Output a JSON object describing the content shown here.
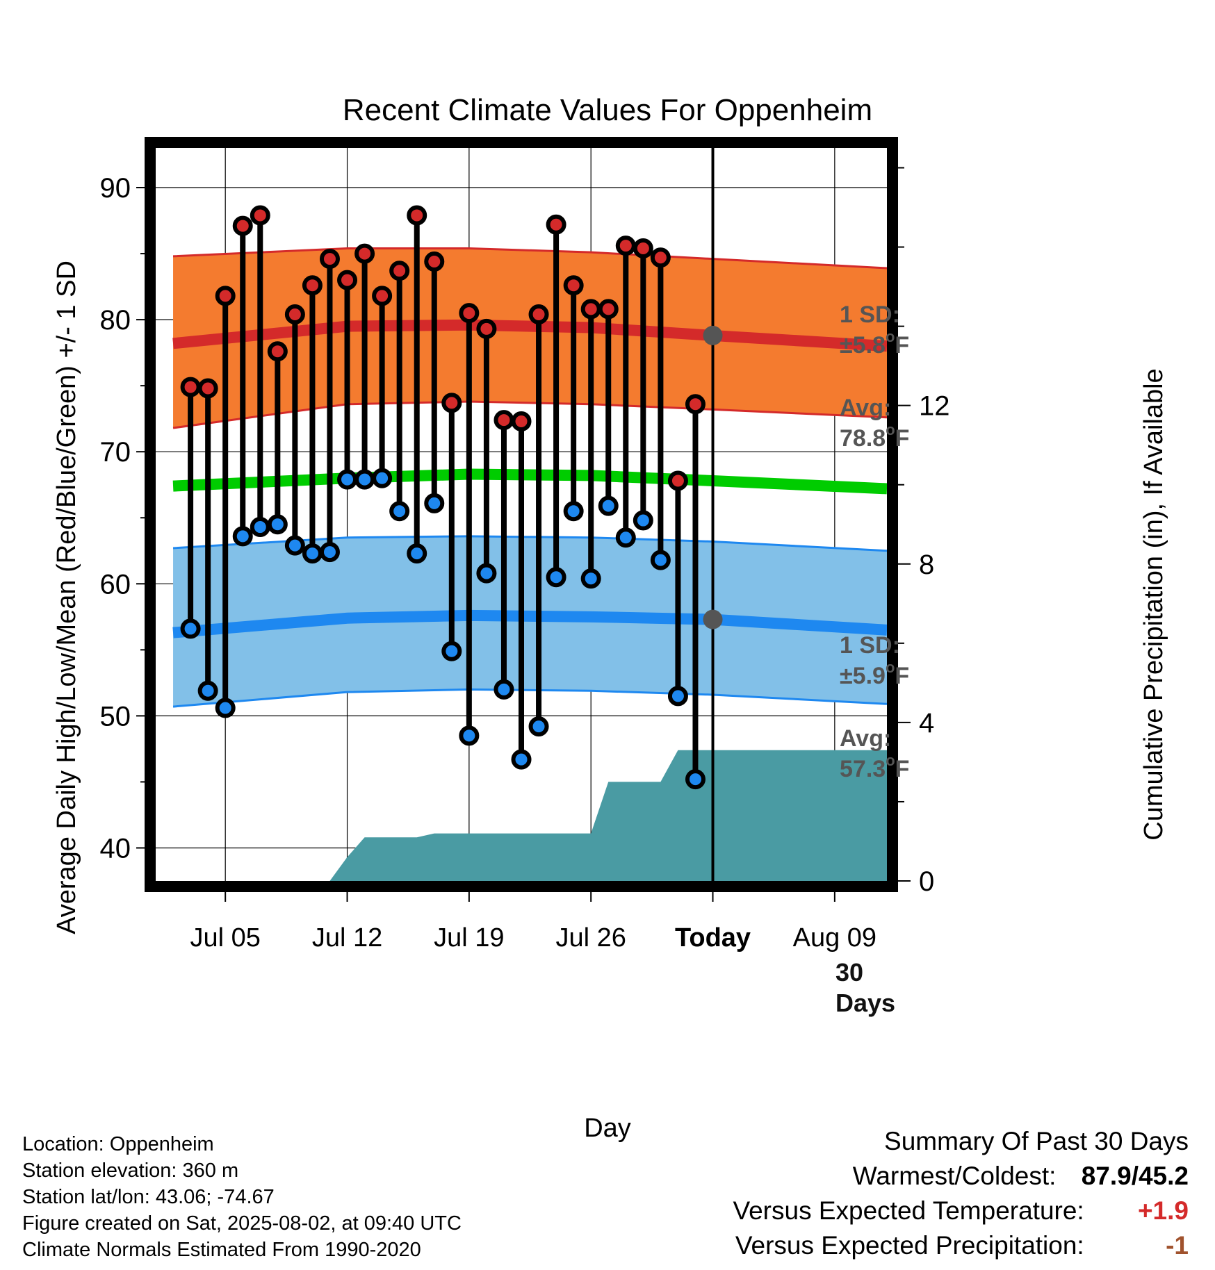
{
  "chart_data": {
    "type": "line",
    "title": "Recent Climate Values For Oppenheim",
    "xlabel": "Day",
    "ylabel": "Average Daily High/Low/Mean (Red/Blue/Green) +/- 1 SD",
    "y2label": "Cumulative Precipitation (in), If Available",
    "ylim": [
      37.5,
      93
    ],
    "y2lim": [
      0,
      18.5
    ],
    "xlim": [
      "2025-07-01",
      "2025-08-12"
    ],
    "x_ticks": [
      {
        "date": "2025-07-05",
        "label": "Jul 05"
      },
      {
        "date": "2025-07-12",
        "label": "Jul 12"
      },
      {
        "date": "2025-07-19",
        "label": "Jul 19"
      },
      {
        "date": "2025-07-26",
        "label": "Jul 26"
      },
      {
        "date": "2025-08-02",
        "label": "Today"
      },
      {
        "date": "2025-08-09",
        "label": "Aug 09"
      }
    ],
    "y_ticks": [
      40,
      50,
      60,
      70,
      80,
      90
    ],
    "y2_ticks": [
      0,
      4,
      8,
      12
    ],
    "grid": true,
    "colors": {
      "high": "#d42a2a",
      "high_band": "#f47b2f",
      "low": "#1e88f0",
      "low_band": "#82c0e8",
      "mean": "#00cc00",
      "precip": "#4a9ba3",
      "annotation": "#555555"
    },
    "normals": {
      "dates": [
        "2025-07-02",
        "2025-07-12",
        "2025-07-19",
        "2025-07-26",
        "2025-08-02",
        "2025-08-12"
      ],
      "high_avg": [
        78.2,
        79.5,
        79.6,
        79.4,
        78.8,
        78.0
      ],
      "high_upper": [
        84.8,
        85.4,
        85.4,
        85.1,
        84.6,
        83.9
      ],
      "high_lower": [
        71.8,
        73.6,
        73.8,
        73.6,
        73.2,
        72.6
      ],
      "low_avg": [
        56.3,
        57.4,
        57.6,
        57.5,
        57.3,
        56.5
      ],
      "low_upper": [
        62.7,
        63.5,
        63.6,
        63.5,
        63.2,
        62.5
      ],
      "low_lower": [
        50.7,
        51.8,
        52.0,
        51.9,
        51.6,
        50.9
      ],
      "mean_avg": [
        67.4,
        68.0,
        68.3,
        68.2,
        67.8,
        67.2
      ]
    },
    "series": [
      {
        "name": "High",
        "x": [
          "2025-07-03",
          "2025-07-04",
          "2025-07-05",
          "2025-07-06",
          "2025-07-07",
          "2025-07-08",
          "2025-07-09",
          "2025-07-10",
          "2025-07-11",
          "2025-07-12",
          "2025-07-13",
          "2025-07-14",
          "2025-07-15",
          "2025-07-16",
          "2025-07-17",
          "2025-07-18",
          "2025-07-19",
          "2025-07-20",
          "2025-07-21",
          "2025-07-22",
          "2025-07-23",
          "2025-07-24",
          "2025-07-25",
          "2025-07-26",
          "2025-07-27",
          "2025-07-28",
          "2025-07-29",
          "2025-07-30",
          "2025-07-31",
          "2025-08-01"
        ],
        "values": [
          74.9,
          74.8,
          81.8,
          87.1,
          87.9,
          77.6,
          80.4,
          82.6,
          84.6,
          83.0,
          85.0,
          81.8,
          83.7,
          87.9,
          84.4,
          73.7,
          80.5,
          79.3,
          72.4,
          72.3,
          80.4,
          87.2,
          82.6,
          80.8,
          80.8,
          85.6,
          85.4,
          84.7,
          67.8,
          73.6
        ]
      },
      {
        "name": "Low",
        "x": [
          "2025-07-03",
          "2025-07-04",
          "2025-07-05",
          "2025-07-06",
          "2025-07-07",
          "2025-07-08",
          "2025-07-09",
          "2025-07-10",
          "2025-07-11",
          "2025-07-12",
          "2025-07-13",
          "2025-07-14",
          "2025-07-15",
          "2025-07-16",
          "2025-07-17",
          "2025-07-18",
          "2025-07-19",
          "2025-07-20",
          "2025-07-21",
          "2025-07-22",
          "2025-07-23",
          "2025-07-24",
          "2025-07-25",
          "2025-07-26",
          "2025-07-27",
          "2025-07-28",
          "2025-07-29",
          "2025-07-30",
          "2025-07-31",
          "2025-08-01"
        ],
        "values": [
          56.6,
          51.9,
          50.6,
          63.6,
          64.3,
          64.5,
          62.9,
          62.3,
          62.4,
          67.9,
          67.9,
          68.0,
          65.5,
          62.3,
          66.1,
          54.9,
          48.5,
          60.8,
          52.0,
          46.7,
          49.2,
          60.5,
          65.5,
          60.4,
          65.9,
          63.5,
          64.8,
          61.8,
          51.5,
          45.2
        ]
      }
    ],
    "precipitation": {
      "x": [
        "2025-07-01",
        "2025-07-10",
        "2025-07-11",
        "2025-07-12",
        "2025-07-13",
        "2025-07-16",
        "2025-07-17",
        "2025-07-26",
        "2025-07-27",
        "2025-07-30",
        "2025-07-31",
        "2025-08-12"
      ],
      "values": [
        0,
        0,
        0,
        0.6,
        1.1,
        1.1,
        1.2,
        1.2,
        2.5,
        2.5,
        3.3,
        3.3
      ]
    },
    "annotations": {
      "high_sd_label": "1 SD:",
      "high_sd_value": "±5.8",
      "high_avg_label": "Avg:",
      "high_avg_value": "78.8",
      "low_sd_label": "1 SD:",
      "low_sd_value": "±5.9",
      "low_avg_label": "Avg:",
      "low_avg_value": "57.3",
      "unit_sup": "o",
      "unit_letter": "F",
      "days_count": "30",
      "days_word": "Days"
    }
  },
  "station": {
    "location": "Location: Oppenheim",
    "elevation": "Station elevation: 360 m",
    "latlon": "Station lat/lon: 43.06; -74.67",
    "created": "Figure created on Sat, 2025-08-02, at 09:40 UTC",
    "normals": "Climate Normals Estimated From 1990-2020"
  },
  "summary": {
    "title": "Summary Of Past 30 Days",
    "warmest_label": "Warmest/Coldest:",
    "warmest_value": "87.9/45.2",
    "temp_label": "Versus Expected Temperature:",
    "temp_value": "+1.9",
    "temp_color": "#d42a2a",
    "precip_label": "Versus Expected Precipitation:",
    "precip_value": "-1",
    "precip_color": "#a0522d"
  }
}
